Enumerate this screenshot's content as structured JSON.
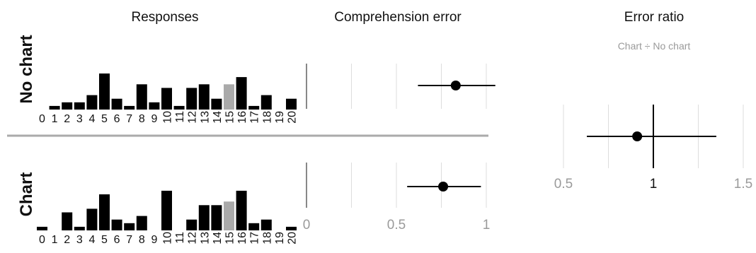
{
  "titles": {
    "responses": "Responses",
    "comprehension": "Comprehension error",
    "ratio": "Error ratio",
    "ratio_subtitle": "Chart ÷ No chart"
  },
  "row_labels": {
    "no_chart": "No chart",
    "chart": "Chart"
  },
  "colors": {
    "bar": "#000000",
    "highlight_bar": "#aaaaaa",
    "divider": "#aaaaaa",
    "grid": "#dddddd",
    "axis_zero": "#888888",
    "tick_text": "#9a9a9a"
  },
  "chart_data": [
    {
      "type": "bar",
      "title": "Responses",
      "panel": "No chart",
      "categories": [
        "0",
        "1",
        "2",
        "3",
        "4",
        "5",
        "6",
        "7",
        "8",
        "9",
        "10",
        "11",
        "12",
        "13",
        "14",
        "15",
        "16",
        "17",
        "18",
        "19",
        "20"
      ],
      "values": [
        0,
        1,
        2,
        2,
        4,
        10,
        3,
        1,
        7,
        2,
        6,
        1,
        6,
        7,
        3,
        7,
        9,
        1,
        4,
        0,
        3
      ],
      "highlight_category": "15"
    },
    {
      "type": "bar",
      "title": "Responses",
      "panel": "Chart",
      "categories": [
        "0",
        "1",
        "2",
        "3",
        "4",
        "5",
        "6",
        "7",
        "8",
        "9",
        "10",
        "11",
        "12",
        "13",
        "14",
        "15",
        "16",
        "17",
        "18",
        "19",
        "20"
      ],
      "values": [
        1,
        0,
        5,
        1,
        6,
        10,
        3,
        2,
        4,
        0,
        11,
        0,
        3,
        7,
        7,
        8,
        11,
        2,
        3,
        0,
        1
      ],
      "highlight_category": "15"
    },
    {
      "type": "scatter",
      "title": "Comprehension error",
      "xlim": [
        0,
        1
      ],
      "xticks": [
        "0",
        "0.5",
        "1"
      ],
      "series": [
        {
          "panel": "No chart",
          "estimate": 0.83,
          "lower": 0.62,
          "upper": 1.05
        },
        {
          "panel": "Chart",
          "estimate": 0.76,
          "lower": 0.56,
          "upper": 0.97
        }
      ]
    },
    {
      "type": "scatter",
      "title": "Error ratio",
      "subtitle": "Chart ÷ No chart",
      "xlim": [
        0.5,
        1.5
      ],
      "xticks": [
        "0.5",
        "1",
        "1.5"
      ],
      "reference_line": 1,
      "series": [
        {
          "estimate": 0.91,
          "lower": 0.63,
          "upper": 1.35
        }
      ]
    }
  ]
}
